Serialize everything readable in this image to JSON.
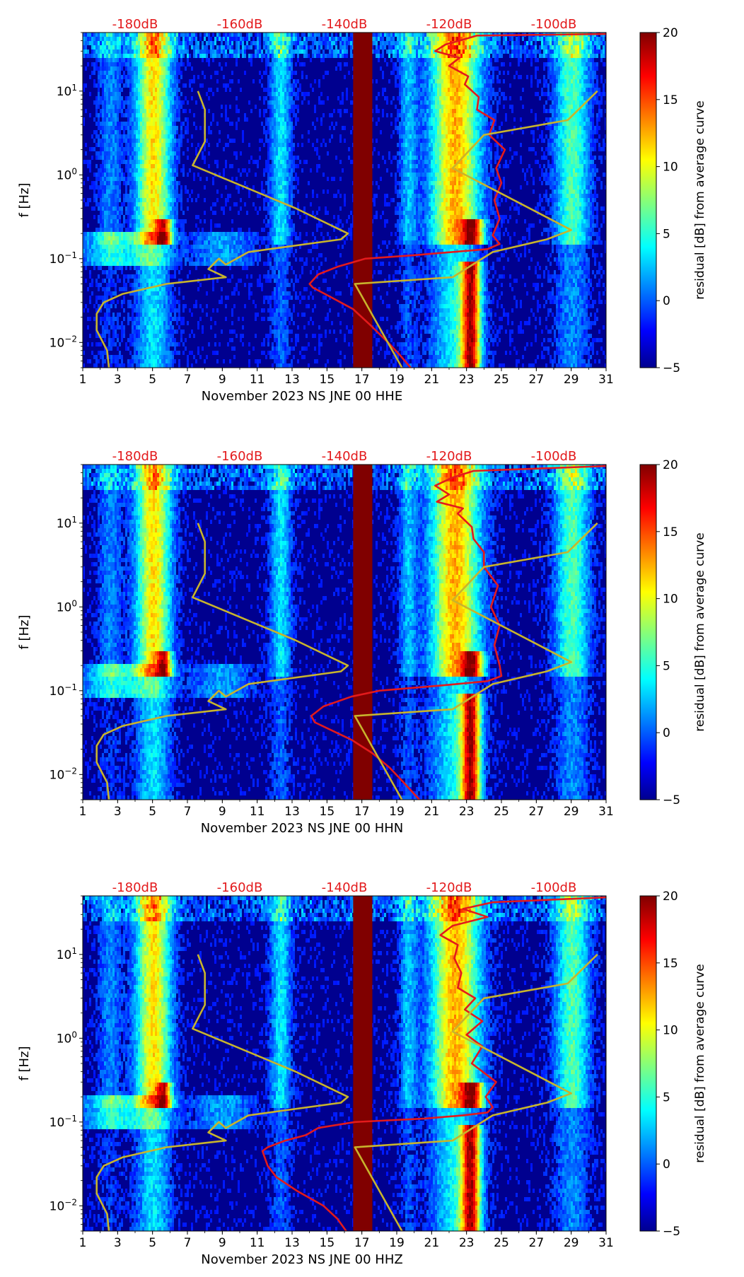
{
  "chart_data": [
    {
      "type": "heatmap",
      "title": "",
      "xlabel": "November 2023 NS JNE 00 HHE",
      "ylabel": "f [Hz]",
      "x_ticks": [
        "1",
        "3",
        "5",
        "7",
        "9",
        "11",
        "13",
        "15",
        "17",
        "19",
        "21",
        "23",
        "25",
        "27",
        "29",
        "31"
      ],
      "xlim": [
        1,
        31
      ],
      "ylim": [
        0.005,
        50
      ],
      "y_ticks": [
        {
          "base": "10",
          "exp": "−2"
        },
        {
          "base": "10",
          "exp": "−1"
        },
        {
          "base": "10",
          "exp": "0"
        },
        {
          "base": "10",
          "exp": "1"
        }
      ],
      "top_axis_labels": [
        "-180dB",
        "-160dB",
        "-140dB",
        "-120dB",
        "-100dB"
      ],
      "top_axis_day_positions": [
        4.0,
        10.0,
        16.0,
        22.0,
        28.0
      ],
      "colorbar": {
        "label": "residual [dB] from average curve",
        "min": -5,
        "max": 20,
        "ticks": [
          "−5",
          "0",
          "5",
          "10",
          "15",
          "20"
        ]
      },
      "data_gap_days": [
        16.5,
        17.6
      ],
      "series": [
        {
          "name": "PSD curve (red, top dB axis)",
          "color": "#e31a1c",
          "points": [
            [
              19.8,
              0.005
            ],
            [
              19.2,
              0.007
            ],
            [
              18.5,
              0.01
            ],
            [
              17.5,
              0.016
            ],
            [
              16.5,
              0.025
            ],
            [
              15.2,
              0.035
            ],
            [
              14.2,
              0.045
            ],
            [
              14.0,
              0.05
            ],
            [
              14.5,
              0.065
            ],
            [
              15.6,
              0.08
            ],
            [
              17.2,
              0.1
            ],
            [
              20.0,
              0.11
            ],
            [
              24.2,
              0.13
            ],
            [
              24.9,
              0.15
            ],
            [
              24.5,
              0.19
            ],
            [
              24.9,
              0.3
            ],
            [
              24.6,
              0.5
            ],
            [
              25.0,
              0.8
            ],
            [
              24.7,
              1.2
            ],
            [
              25.2,
              2.0
            ],
            [
              24.3,
              3.0
            ],
            [
              24.6,
              4.5
            ],
            [
              23.6,
              6.0
            ],
            [
              23.7,
              8.5
            ],
            [
              22.9,
              12
            ],
            [
              23.1,
              15
            ],
            [
              22.0,
              20
            ],
            [
              22.6,
              25
            ],
            [
              21.2,
              30
            ],
            [
              21.8,
              36
            ],
            [
              22.6,
              40
            ],
            [
              23.6,
              46
            ],
            [
              31.0,
              48
            ]
          ]
        },
        {
          "name": "reference curve (yellow, top dB axis)",
          "color": "#c8b42c",
          "points": [
            [
              2.5,
              0.005
            ],
            [
              2.4,
              0.008
            ],
            [
              1.8,
              0.014
            ],
            [
              1.8,
              0.022
            ],
            [
              2.2,
              0.03
            ],
            [
              3.3,
              0.038
            ],
            [
              5.8,
              0.05
            ],
            [
              9.2,
              0.06
            ],
            [
              8.2,
              0.075
            ],
            [
              8.8,
              0.1
            ],
            [
              9.2,
              0.085
            ],
            [
              10.5,
              0.12
            ],
            [
              15.8,
              0.17
            ],
            [
              16.2,
              0.2
            ],
            [
              13.2,
              0.4
            ],
            [
              7.3,
              1.3
            ],
            [
              8.0,
              2.5
            ],
            [
              8.0,
              6.0
            ],
            [
              7.6,
              10
            ]
          ]
        },
        {
          "name": "reference curve 2 (yellow, top dB axis)",
          "color": "#c8b42c",
          "points": [
            [
              19.3,
              0.005
            ],
            [
              16.6,
              0.05
            ],
            [
              22.2,
              0.06
            ],
            [
              24.5,
              0.12
            ],
            [
              27.6,
              0.17
            ],
            [
              29.0,
              0.22
            ],
            [
              22.2,
              1.2
            ],
            [
              24.0,
              3.0
            ],
            [
              28.8,
              4.5
            ],
            [
              30.5,
              10
            ]
          ]
        }
      ]
    },
    {
      "type": "heatmap",
      "title": "",
      "xlabel": "November 2023 NS JNE 00 HHN",
      "ylabel": "f [Hz]",
      "x_ticks": [
        "1",
        "3",
        "5",
        "7",
        "9",
        "11",
        "13",
        "15",
        "17",
        "19",
        "21",
        "23",
        "25",
        "27",
        "29",
        "31"
      ],
      "xlim": [
        1,
        31
      ],
      "ylim": [
        0.005,
        50
      ],
      "y_ticks": [
        {
          "base": "10",
          "exp": "−2"
        },
        {
          "base": "10",
          "exp": "−1"
        },
        {
          "base": "10",
          "exp": "0"
        },
        {
          "base": "10",
          "exp": "1"
        }
      ],
      "top_axis_labels": [
        "-180dB",
        "-160dB",
        "-140dB",
        "-120dB",
        "-100dB"
      ],
      "top_axis_day_positions": [
        4.0,
        10.0,
        16.0,
        22.0,
        28.0
      ],
      "colorbar": {
        "label": "residual [dB] from average curve",
        "min": -5,
        "max": 20,
        "ticks": [
          "−5",
          "0",
          "5",
          "10",
          "15",
          "20"
        ]
      },
      "data_gap_days": [
        16.5,
        17.6
      ],
      "series": [
        {
          "name": "PSD curve (red, top dB axis)",
          "color": "#e31a1c",
          "points": [
            [
              20.3,
              0.005
            ],
            [
              19.4,
              0.008
            ],
            [
              18.6,
              0.012
            ],
            [
              17.6,
              0.018
            ],
            [
              16.4,
              0.026
            ],
            [
              15.1,
              0.035
            ],
            [
              14.3,
              0.042
            ],
            [
              14.1,
              0.05
            ],
            [
              14.8,
              0.065
            ],
            [
              16.4,
              0.085
            ],
            [
              18.0,
              0.1
            ],
            [
              21.5,
              0.115
            ],
            [
              24.2,
              0.13
            ],
            [
              25.0,
              0.15
            ],
            [
              24.9,
              0.2
            ],
            [
              24.6,
              0.35
            ],
            [
              24.9,
              0.6
            ],
            [
              24.4,
              1.0
            ],
            [
              24.8,
              1.8
            ],
            [
              24.0,
              3.0
            ],
            [
              24.0,
              4.5
            ],
            [
              23.4,
              6.5
            ],
            [
              23.3,
              9.0
            ],
            [
              22.5,
              13
            ],
            [
              22.8,
              15
            ],
            [
              21.3,
              18
            ],
            [
              22.0,
              22
            ],
            [
              21.2,
              28
            ],
            [
              22.2,
              35
            ],
            [
              23.4,
              42
            ],
            [
              31.0,
              48
            ]
          ]
        },
        {
          "name": "reference curve (yellow, top dB axis)",
          "color": "#c8b42c",
          "points": [
            [
              2.5,
              0.005
            ],
            [
              2.4,
              0.008
            ],
            [
              1.8,
              0.014
            ],
            [
              1.8,
              0.022
            ],
            [
              2.2,
              0.03
            ],
            [
              3.3,
              0.038
            ],
            [
              5.8,
              0.05
            ],
            [
              9.2,
              0.06
            ],
            [
              8.2,
              0.075
            ],
            [
              8.8,
              0.1
            ],
            [
              9.2,
              0.085
            ],
            [
              10.5,
              0.12
            ],
            [
              15.8,
              0.17
            ],
            [
              16.2,
              0.2
            ],
            [
              13.2,
              0.4
            ],
            [
              7.3,
              1.3
            ],
            [
              8.0,
              2.5
            ],
            [
              8.0,
              6.0
            ],
            [
              7.6,
              10
            ]
          ]
        },
        {
          "name": "reference curve 2 (yellow, top dB axis)",
          "color": "#c8b42c",
          "points": [
            [
              19.3,
              0.005
            ],
            [
              16.6,
              0.05
            ],
            [
              22.2,
              0.06
            ],
            [
              24.5,
              0.12
            ],
            [
              27.6,
              0.17
            ],
            [
              29.0,
              0.22
            ],
            [
              22.2,
              1.2
            ],
            [
              24.0,
              3.0
            ],
            [
              28.8,
              4.5
            ],
            [
              30.5,
              10
            ]
          ]
        }
      ]
    },
    {
      "type": "heatmap",
      "title": "",
      "xlabel": "November 2023 NS JNE 00 HHZ",
      "ylabel": "f [Hz]",
      "x_ticks": [
        "1",
        "3",
        "5",
        "7",
        "9",
        "11",
        "13",
        "15",
        "17",
        "19",
        "21",
        "23",
        "25",
        "27",
        "29",
        "31"
      ],
      "xlim": [
        1,
        31
      ],
      "ylim": [
        0.005,
        50
      ],
      "y_ticks": [
        {
          "base": "10",
          "exp": "−2"
        },
        {
          "base": "10",
          "exp": "−1"
        },
        {
          "base": "10",
          "exp": "0"
        },
        {
          "base": "10",
          "exp": "1"
        }
      ],
      "top_axis_labels": [
        "-180dB",
        "-160dB",
        "-140dB",
        "-120dB",
        "-100dB"
      ],
      "top_axis_day_positions": [
        4.0,
        10.0,
        16.0,
        22.0,
        28.0
      ],
      "colorbar": {
        "label": "residual [dB] from average curve",
        "min": -5,
        "max": 20,
        "ticks": [
          "−5",
          "0",
          "5",
          "10",
          "15",
          "20"
        ]
      },
      "data_gap_days": [
        16.5,
        17.6
      ],
      "series": [
        {
          "name": "PSD curve (red, top dB axis)",
          "color": "#e31a1c",
          "points": [
            [
              16.1,
              0.005
            ],
            [
              15.6,
              0.007
            ],
            [
              14.8,
              0.01
            ],
            [
              13.3,
              0.015
            ],
            [
              12.1,
              0.022
            ],
            [
              11.6,
              0.03
            ],
            [
              11.3,
              0.045
            ],
            [
              11.6,
              0.05
            ],
            [
              12.6,
              0.06
            ],
            [
              13.8,
              0.07
            ],
            [
              14.5,
              0.085
            ],
            [
              16.6,
              0.1
            ],
            [
              20.6,
              0.11
            ],
            [
              22.8,
              0.12
            ],
            [
              24.2,
              0.13
            ],
            [
              24.5,
              0.15
            ],
            [
              24.1,
              0.2
            ],
            [
              24.7,
              0.3
            ],
            [
              23.3,
              0.5
            ],
            [
              23.9,
              0.8
            ],
            [
              23.0,
              1.1
            ],
            [
              23.9,
              1.6
            ],
            [
              22.9,
              2.2
            ],
            [
              23.5,
              3.0
            ],
            [
              22.5,
              4.0
            ],
            [
              22.7,
              6.0
            ],
            [
              22.3,
              9.0
            ],
            [
              22.5,
              13
            ],
            [
              21.5,
              17
            ],
            [
              22.2,
              22
            ],
            [
              24.2,
              28
            ],
            [
              22.8,
              35
            ],
            [
              24.5,
              42
            ],
            [
              31.0,
              48
            ]
          ]
        },
        {
          "name": "reference curve (yellow, top dB axis)",
          "color": "#c8b42c",
          "points": [
            [
              2.5,
              0.005
            ],
            [
              2.4,
              0.008
            ],
            [
              1.8,
              0.014
            ],
            [
              1.8,
              0.022
            ],
            [
              2.2,
              0.03
            ],
            [
              3.3,
              0.038
            ],
            [
              5.8,
              0.05
            ],
            [
              9.2,
              0.06
            ],
            [
              8.2,
              0.075
            ],
            [
              8.8,
              0.1
            ],
            [
              9.2,
              0.085
            ],
            [
              10.5,
              0.12
            ],
            [
              15.8,
              0.17
            ],
            [
              16.2,
              0.2
            ],
            [
              13.2,
              0.4
            ],
            [
              7.3,
              1.3
            ],
            [
              8.0,
              2.5
            ],
            [
              8.0,
              6.0
            ],
            [
              7.6,
              10
            ]
          ]
        },
        {
          "name": "reference curve 2 (yellow, top dB axis)",
          "color": "#c8b42c",
          "points": [
            [
              19.3,
              0.005
            ],
            [
              16.6,
              0.05
            ],
            [
              22.2,
              0.06
            ],
            [
              24.5,
              0.12
            ],
            [
              27.6,
              0.17
            ],
            [
              29.0,
              0.22
            ],
            [
              22.2,
              1.2
            ],
            [
              24.0,
              3.0
            ],
            [
              28.8,
              4.5
            ],
            [
              30.5,
              10
            ]
          ]
        }
      ]
    }
  ]
}
